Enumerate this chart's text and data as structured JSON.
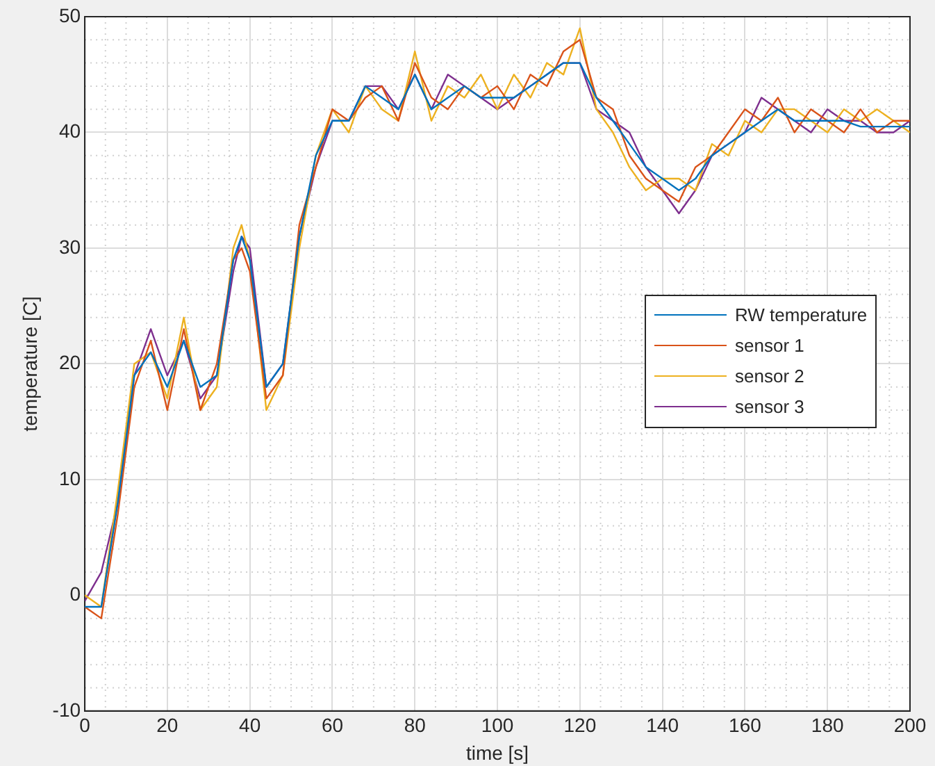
{
  "chart_data": {
    "type": "line",
    "xlabel": "time [s]",
    "ylabel": "temperature [C]",
    "x": [
      0,
      4,
      8,
      12,
      16,
      20,
      24,
      28,
      32,
      36,
      38,
      40,
      44,
      48,
      52,
      56,
      60,
      64,
      68,
      72,
      76,
      80,
      84,
      88,
      92,
      96,
      100,
      104,
      108,
      112,
      116,
      120,
      124,
      128,
      132,
      136,
      140,
      144,
      148,
      152,
      156,
      160,
      164,
      168,
      172,
      176,
      180,
      184,
      188,
      192,
      196,
      200
    ],
    "series": [
      {
        "name": "RW temperature",
        "color": "#0072bd",
        "values": [
          -1,
          -1,
          8,
          19,
          21,
          18,
          22,
          18,
          19,
          29,
          31,
          29,
          18,
          20,
          31,
          38,
          41,
          41,
          44,
          43,
          42,
          45,
          42,
          43,
          44,
          43,
          43,
          43,
          44,
          45,
          46,
          46,
          43,
          41,
          39,
          37,
          36,
          35,
          36,
          38,
          39,
          40,
          41,
          42,
          41,
          41,
          41,
          41,
          40.5,
          40.5,
          40.5,
          40.5
        ]
      },
      {
        "name": "sensor 1",
        "color": "#d95319",
        "values": [
          -1,
          -2,
          7,
          18,
          22,
          16,
          23,
          16,
          20,
          29,
          30,
          28,
          17,
          19,
          32,
          37,
          42,
          41,
          43,
          44,
          41,
          46,
          43,
          42,
          44,
          43,
          44,
          42,
          45,
          44,
          47,
          48,
          43,
          42,
          38,
          36,
          35,
          34,
          37,
          38,
          40,
          42,
          41,
          43,
          40,
          42,
          41,
          40,
          42,
          40,
          41,
          41
        ]
      },
      {
        "name": "sensor 2",
        "color": "#edb120",
        "values": [
          0,
          -1,
          9,
          20,
          21,
          17,
          24,
          16,
          18,
          30,
          32,
          29,
          16,
          19,
          30,
          38,
          42,
          40,
          44,
          42,
          41,
          47,
          41,
          44,
          43,
          45,
          42,
          45,
          43,
          46,
          45,
          49,
          42,
          40,
          37,
          35,
          36,
          36,
          35,
          39,
          38,
          41,
          40,
          42,
          42,
          41,
          40,
          42,
          41,
          42,
          41,
          40
        ]
      },
      {
        "name": "sensor 3",
        "color": "#7e2f8e",
        "values": [
          -0.5,
          2,
          8,
          19,
          23,
          19,
          22,
          17,
          19,
          28,
          31,
          30,
          18,
          20,
          31,
          37,
          41,
          41,
          44,
          44,
          42,
          45,
          42,
          45,
          44,
          43,
          42,
          43,
          44,
          45,
          46,
          46,
          42,
          41,
          40,
          37,
          35,
          33,
          35,
          38,
          39,
          40,
          43,
          42,
          41,
          40,
          42,
          41,
          41,
          40,
          40,
          41
        ]
      }
    ],
    "xlim": [
      0,
      200
    ],
    "xticks": [
      0,
      20,
      40,
      60,
      80,
      100,
      120,
      140,
      160,
      180,
      200
    ],
    "ylim": [
      -10,
      50
    ],
    "yticks": [
      -10,
      0,
      10,
      20,
      30,
      40,
      50
    ],
    "grid": true,
    "legend": "right",
    "marker": "none",
    "line_style": "solid"
  }
}
